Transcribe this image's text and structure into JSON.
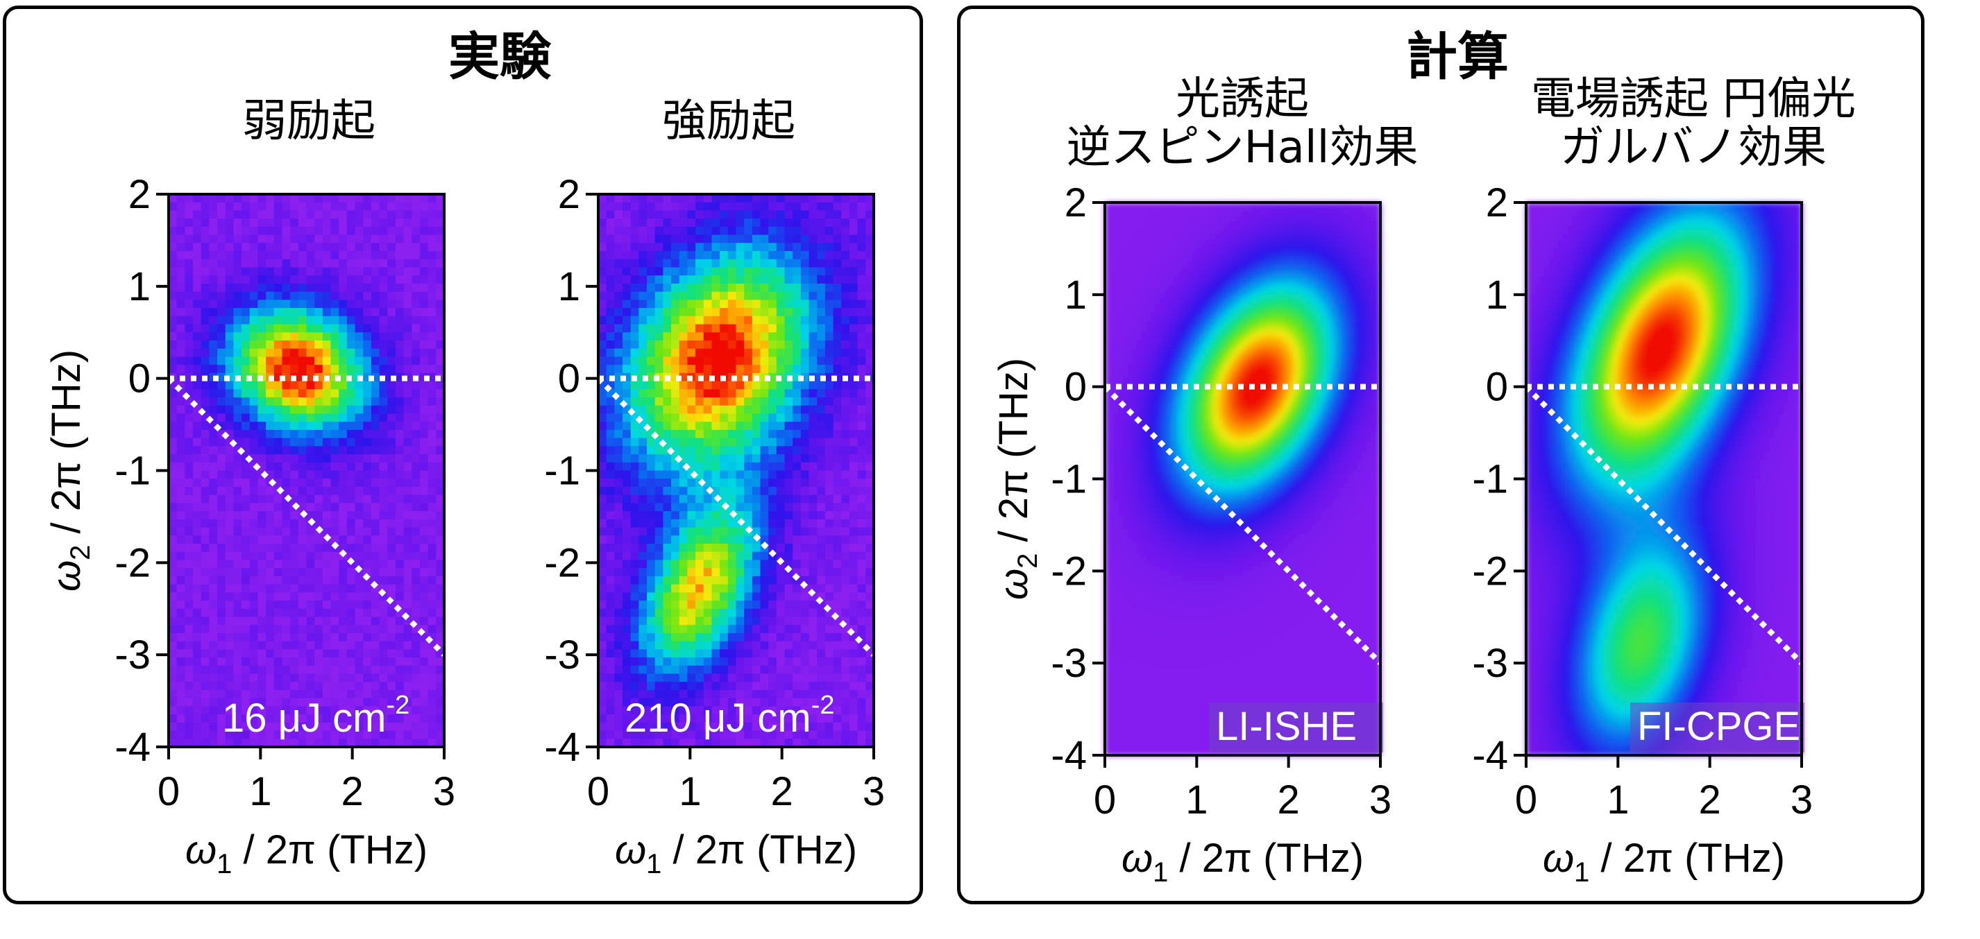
{
  "groups": {
    "experiment": {
      "title": "実験",
      "colors": {
        "border": "#000000"
      }
    },
    "calculation": {
      "title": "計算",
      "colors": {
        "border": "#000000"
      }
    }
  },
  "panels": [
    {
      "key": "p1",
      "subtitle": [
        "弱励起"
      ],
      "label": "16 μJ cm",
      "label_sup": "-2"
    },
    {
      "key": "p2",
      "subtitle": [
        "強励起"
      ],
      "label": "210 μJ cm",
      "label_sup": "-2"
    },
    {
      "key": "p3",
      "subtitle": [
        "光誘起",
        "逆スピンHall効果"
      ],
      "label": "LI-ISHE",
      "label_sup": ""
    },
    {
      "key": "p4",
      "subtitle": [
        "電場誘起 円偏光",
        "ガルバノ効果"
      ],
      "label": "FI-CPGE",
      "label_sup": ""
    }
  ],
  "chart_data": [
    {
      "type": "heatmap",
      "xlabel": "ω1 / 2π (THz)",
      "ylabel": "ω2 / 2π (THz)",
      "xlim": [
        0,
        3
      ],
      "ylim": [
        -4,
        2
      ],
      "xticks": [
        "0",
        "1",
        "2",
        "3"
      ],
      "yticks": [
        "2",
        "1",
        "0",
        "-1",
        "-2",
        "-3",
        "-4"
      ],
      "annotation": "16 μJ cm-2",
      "guides": [
        {
          "from": [
            0,
            0
          ],
          "to": [
            3,
            0
          ]
        },
        {
          "from": [
            0,
            0
          ],
          "to": [
            3,
            -3
          ]
        }
      ],
      "peaks": [
        {
          "x": 1.4,
          "y": 0.1,
          "intensity": 1.0,
          "sx": 0.55,
          "sy": 0.45,
          "tilt": -0.5
        }
      ]
    },
    {
      "type": "heatmap",
      "xlabel": "ω1 / 2π (THz)",
      "ylabel": "",
      "xlim": [
        0,
        3
      ],
      "ylim": [
        -4,
        2
      ],
      "xticks": [
        "0",
        "1",
        "2",
        "3"
      ],
      "yticks": [
        "2",
        "1",
        "0",
        "-1",
        "-2",
        "-3",
        "-4"
      ],
      "annotation": "210 μJ cm-2",
      "guides": [
        {
          "from": [
            0,
            0
          ],
          "to": [
            3,
            0
          ]
        },
        {
          "from": [
            0,
            0
          ],
          "to": [
            3,
            -3
          ]
        }
      ],
      "peaks": [
        {
          "x": 1.3,
          "y": 0.2,
          "intensity": 1.0,
          "sx": 0.65,
          "sy": 0.9,
          "tilt": -0.55
        },
        {
          "x": 1.1,
          "y": -2.3,
          "intensity": 0.8,
          "sx": 0.38,
          "sy": 0.7,
          "tilt": -0.45
        }
      ]
    },
    {
      "type": "heatmap",
      "xlabel": "ω1 / 2π (THz)",
      "ylabel": "ω2 / 2π (THz)",
      "xlim": [
        0,
        3
      ],
      "ylim": [
        -4,
        2
      ],
      "xticks": [
        "0",
        "1",
        "2",
        "3"
      ],
      "yticks": [
        "2",
        "1",
        "0",
        "-1",
        "-2",
        "-3",
        "-4"
      ],
      "annotation": "LI-ISHE",
      "guides": [
        {
          "from": [
            0,
            0
          ],
          "to": [
            3,
            0
          ]
        },
        {
          "from": [
            0,
            0
          ],
          "to": [
            3,
            -3
          ]
        }
      ],
      "peaks": [
        {
          "x": 1.65,
          "y": 0.0,
          "intensity": 1.0,
          "sx": 0.55,
          "sy": 0.9,
          "tilt": -0.45
        }
      ]
    },
    {
      "type": "heatmap",
      "xlabel": "ω1 / 2π (THz)",
      "ylabel": "",
      "xlim": [
        0,
        3
      ],
      "ylim": [
        -4,
        2
      ],
      "xticks": [
        "0",
        "1",
        "2",
        "3"
      ],
      "yticks": [
        "2",
        "1",
        "0",
        "-1",
        "-2",
        "-3",
        "-4"
      ],
      "annotation": "FI-CPGE",
      "guides": [
        {
          "from": [
            0,
            0
          ],
          "to": [
            3,
            0
          ]
        },
        {
          "from": [
            0,
            0
          ],
          "to": [
            3,
            -3
          ]
        }
      ],
      "peaks": [
        {
          "x": 1.45,
          "y": 0.4,
          "intensity": 1.0,
          "sx": 0.6,
          "sy": 1.15,
          "tilt": -0.4
        },
        {
          "x": 1.25,
          "y": -2.8,
          "intensity": 0.62,
          "sx": 0.5,
          "sy": 0.9,
          "tilt": -0.3
        }
      ]
    }
  ]
}
